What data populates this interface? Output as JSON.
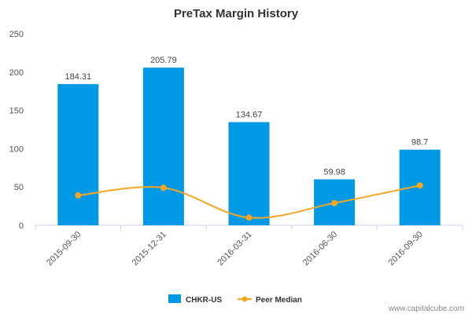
{
  "chart_data": {
    "type": "bar",
    "title": "PreTax Margin History",
    "categories": [
      "2015-09-30",
      "2015-12-31",
      "2016-03-31",
      "2016-06-30",
      "2016-09-30"
    ],
    "series": [
      {
        "name": "CHKR-US",
        "kind": "bar",
        "color": "#0099e6",
        "values": [
          184.31,
          205.79,
          134.67,
          59.98,
          98.7
        ],
        "labels": [
          "184.31",
          "205.79",
          "134.67",
          "59.98",
          "98.7"
        ]
      },
      {
        "name": "Peer Median",
        "kind": "line",
        "color": "#f5a623",
        "values": [
          39,
          49,
          10,
          29,
          52
        ]
      }
    ],
    "ylim": [
      0,
      250
    ],
    "yticks": [
      0,
      50,
      100,
      150,
      200,
      250
    ],
    "xlabel": "",
    "ylabel": "",
    "grid": false,
    "legend_position": "bottom-center"
  },
  "footer": {
    "credit": "www.capitalcube.com"
  }
}
